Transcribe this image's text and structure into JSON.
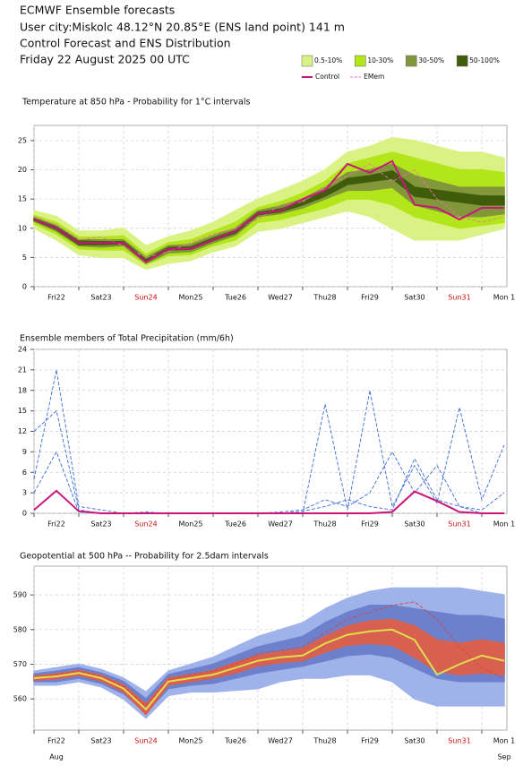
{
  "header": {
    "lines": [
      "ECMWF Ensemble forecasts",
      "User city:Miskolc 48.12°N 20.85°E (ENS land point) 141 m",
      "Control Forecast and ENS Distribution",
      "Friday 22 August 2025 00 UTC"
    ]
  },
  "chart_data": [
    {
      "type": "line",
      "title": "Temperature at 850 hPa - Probability for 1°C intervals",
      "x": [
        0,
        0.5,
        1,
        1.5,
        2,
        2.5,
        3,
        3.5,
        4,
        4.5,
        5,
        5.5,
        6,
        6.5,
        7,
        7.5,
        8,
        8.5,
        9,
        9.5,
        10,
        10.5
      ],
      "xlim": [
        0,
        10.56
      ],
      "ylim": [
        0,
        27.6
      ],
      "yticks": [
        0,
        5,
        10,
        15,
        20,
        25
      ],
      "grid": true,
      "xgrid": [
        0,
        1,
        2,
        3,
        4,
        5,
        6,
        7,
        8,
        9,
        10
      ],
      "xticks": [
        {
          "value": 0.5,
          "label": "Fri22"
        },
        {
          "value": 1.5,
          "label": "Sat23"
        },
        {
          "value": 2.5,
          "label": "Sun24",
          "color": "#d01010"
        },
        {
          "value": 3.5,
          "label": "Mon25"
        },
        {
          "value": 4.5,
          "label": "Tue26"
        },
        {
          "value": 5.5,
          "label": "Wed27"
        },
        {
          "value": 6.5,
          "label": "Thu28"
        },
        {
          "value": 7.5,
          "label": "Fri29"
        },
        {
          "value": 8.5,
          "label": "Sat30"
        },
        {
          "value": 9.5,
          "label": "Sun31",
          "color": "#d01010"
        },
        {
          "value": 10.5,
          "label": "Mon 1"
        }
      ],
      "series": [
        {
          "name": "0.5-10%",
          "color": "#d9f283",
          "high": [
            13,
            12,
            9.5,
            9.5,
            10,
            7,
            8.5,
            9.5,
            11,
            13,
            15,
            16.5,
            18,
            20,
            23,
            24,
            25.5,
            25,
            24,
            23,
            23,
            22
          ],
          "low": [
            10,
            8,
            5.5,
            5,
            5,
            3,
            4,
            4.5,
            6,
            7,
            9.5,
            10,
            11,
            12,
            13,
            12,
            10,
            8,
            8,
            8,
            9,
            10
          ]
        },
        {
          "name": "10-30%",
          "color": "#b2e61a",
          "high": [
            12.2,
            11,
            8.5,
            8.5,
            8.7,
            5.5,
            7.5,
            8,
            9.5,
            11,
            13.5,
            14.5,
            16,
            18,
            21,
            22,
            23,
            22,
            21,
            20,
            20,
            19.5
          ],
          "low": [
            10.8,
            9,
            6.5,
            6.3,
            6.3,
            3.8,
            5.3,
            5.5,
            7,
            8,
            11,
            11.5,
            12.5,
            13.5,
            15,
            15,
            14,
            12,
            11,
            10,
            10.5,
            11
          ]
        },
        {
          "name": "30-50%",
          "color": "#82963a",
          "high": [
            11.8,
            10.5,
            8,
            8,
            8,
            5,
            7,
            7.2,
            8.7,
            10,
            13,
            13.8,
            15,
            17,
            19.5,
            20,
            21,
            19,
            18,
            17,
            17,
            17
          ],
          "low": [
            11.2,
            9.5,
            7,
            6.8,
            7,
            4,
            5.8,
            6,
            7.5,
            8.8,
            12,
            12.5,
            13.5,
            15,
            16.5,
            16.5,
            17,
            14,
            13,
            12,
            12,
            12.5
          ]
        },
        {
          "name": "50-100%",
          "color": "#3e5c0a",
          "high": [
            11.6,
            10.2,
            7.8,
            7.7,
            7.7,
            4.6,
            6.7,
            6.8,
            8.3,
            9.6,
            12.7,
            13.3,
            14.5,
            16.3,
            18.5,
            19,
            19.8,
            17,
            16.5,
            16,
            15.5,
            15.5
          ],
          "low": [
            11.4,
            9.8,
            7.2,
            7.2,
            7.3,
            4.2,
            6.3,
            6.4,
            7.9,
            9.2,
            12.3,
            12.8,
            14,
            15.5,
            17.5,
            18,
            18.5,
            15.5,
            15,
            14.5,
            14,
            14
          ]
        },
        {
          "name": "EMem",
          "color": "#f070b0",
          "dashed": true,
          "values": [
            12,
            10.5,
            8,
            8.5,
            7,
            5,
            6,
            7.5,
            9,
            10,
            11.5,
            14,
            14.5,
            17,
            19,
            21,
            18,
            20,
            15,
            12,
            11,
            12
          ]
        },
        {
          "name": "Control",
          "color": "#c8167a",
          "values": [
            11.5,
            10,
            7.5,
            7.5,
            7.5,
            4.2,
            6.5,
            6.5,
            8,
            9.5,
            12.5,
            13,
            15,
            16.5,
            21,
            19.5,
            21.5,
            14,
            13.5,
            11.5,
            13.5,
            13.5
          ]
        }
      ]
    },
    {
      "type": "line",
      "title": "Ensemble members of Total Precipitation (mm/6h)",
      "x": [
        0,
        0.5,
        1,
        1.5,
        2,
        2.5,
        3,
        3.5,
        4,
        4.5,
        5,
        5.5,
        6,
        6.5,
        7,
        7.5,
        8,
        8.5,
        9,
        9.5,
        10,
        10.5
      ],
      "xlim": [
        0,
        10.56
      ],
      "ylim": [
        0,
        24
      ],
      "yticks": [
        0,
        3,
        6,
        9,
        12,
        15,
        18,
        21,
        24
      ],
      "grid": true,
      "xgrid": [
        0,
        1,
        2,
        3,
        4,
        5,
        6,
        7,
        8,
        9,
        10
      ],
      "xticks": [
        {
          "value": 0.5,
          "label": "Fri22"
        },
        {
          "value": 1.5,
          "label": "Sat23"
        },
        {
          "value": 2.5,
          "label": "Sun24",
          "color": "#d01010"
        },
        {
          "value": 3.5,
          "label": "Mon25"
        },
        {
          "value": 4.5,
          "label": "Tue26"
        },
        {
          "value": 5.5,
          "label": "Wed27"
        },
        {
          "value": 6.5,
          "label": "Thu28"
        },
        {
          "value": 7.5,
          "label": "Fri29"
        },
        {
          "value": 8.5,
          "label": "Sat30"
        },
        {
          "value": 9.5,
          "label": "Sun31",
          "color": "#d01010"
        },
        {
          "value": 10.5,
          "label": "Mon 1"
        }
      ],
      "series": [
        {
          "color": "#3a6ad8",
          "dashed": true,
          "values": [
            5,
            21,
            1,
            0.5,
            0,
            0.2,
            0,
            0,
            0,
            0,
            0,
            0,
            0.3,
            1,
            2,
            1,
            0.5,
            8,
            2,
            1,
            0,
            0
          ]
        },
        {
          "color": "#3a6ad8",
          "dashed": true,
          "values": [
            12,
            15,
            0.5,
            0,
            0,
            0,
            0,
            0,
            0,
            0,
            0,
            0,
            0,
            16,
            0.5,
            18,
            1,
            7,
            1.5,
            15.5,
            2,
            10
          ]
        },
        {
          "color": "#3a6ad8",
          "dashed": true,
          "values": [
            3,
            9,
            0.2,
            0,
            0,
            0,
            0,
            0,
            0,
            0,
            0,
            0.2,
            0.5,
            2,
            1,
            3,
            9,
            3,
            7,
            1,
            0.5,
            3
          ]
        },
        {
          "color": "#c8167a",
          "values": [
            0.5,
            3.3,
            0.3,
            0,
            0,
            0,
            0,
            0,
            0,
            0,
            0,
            0,
            0,
            0,
            0,
            0,
            0.2,
            3.2,
            1.8,
            0.2,
            0,
            0
          ]
        }
      ]
    },
    {
      "type": "line",
      "title": "Geopotential at 500 hPa -- Probability for 2.5dam intervals",
      "x": [
        0,
        0.5,
        1,
        1.5,
        2,
        2.5,
        3,
        3.5,
        4,
        4.5,
        5,
        5.5,
        6,
        6.5,
        7,
        7.5,
        8,
        8.5,
        9,
        9.5,
        10,
        10.5
      ],
      "xlim": [
        0,
        10.56
      ],
      "ylim": [
        551,
        598.3
      ],
      "yticks": [
        560,
        570,
        580,
        590
      ],
      "grid": true,
      "xgrid": [
        0,
        1,
        2,
        3,
        4,
        5,
        6,
        7,
        8,
        9,
        10
      ],
      "xticks": [
        {
          "value": 0.5,
          "label": "Fri22"
        },
        {
          "value": 1.5,
          "label": "Sat23"
        },
        {
          "value": 2.5,
          "label": "Sun24",
          "color": "#d01010"
        },
        {
          "value": 3.5,
          "label": "Mon25"
        },
        {
          "value": 4.5,
          "label": "Tue26"
        },
        {
          "value": 5.5,
          "label": "Wed27"
        },
        {
          "value": 6.5,
          "label": "Thu28"
        },
        {
          "value": 7.5,
          "label": "Fri29"
        },
        {
          "value": 8.5,
          "label": "Sat30"
        },
        {
          "value": 9.5,
          "label": "Sun31",
          "color": "#d01010"
        },
        {
          "value": 10.5,
          "label": "Mon 1"
        }
      ],
      "xsublabels": [
        {
          "value": 0.5,
          "label": "Aug"
        },
        {
          "value": 10.5,
          "label": "Sep"
        }
      ],
      "series": [
        {
          "color": "#9fb3ea",
          "high": [
            568,
            569,
            570,
            568.5,
            566,
            562,
            568,
            570,
            572,
            575,
            578,
            580,
            582,
            586,
            589,
            591,
            592,
            592,
            592,
            592,
            591,
            590
          ],
          "low": [
            564,
            564,
            565,
            563.5,
            560,
            554.5,
            561,
            562,
            562,
            562.5,
            563,
            565,
            566,
            566,
            567,
            567,
            565,
            560,
            558,
            558,
            558,
            558
          ]
        },
        {
          "color": "#6c80cc",
          "high": [
            567.2,
            568,
            569,
            567.5,
            565,
            560,
            567,
            568.5,
            570,
            572.5,
            575,
            576.5,
            578,
            582,
            585,
            587,
            587,
            586,
            585,
            584,
            584,
            583
          ],
          "low": [
            565,
            565,
            566,
            564.5,
            561.5,
            556,
            563,
            564,
            564.5,
            566,
            567.5,
            568.5,
            569.5,
            571,
            572.5,
            573,
            572,
            569,
            566,
            565,
            565,
            565
          ]
        },
        {
          "color": "#d8604e",
          "high": [
            566.6,
            567.2,
            568.2,
            566.8,
            564,
            558.5,
            566,
            567,
            568.2,
            570.5,
            572.5,
            573.5,
            574.5,
            578,
            581,
            582.5,
            583,
            581,
            577,
            576,
            577,
            576
          ],
          "low": [
            565.4,
            565.8,
            566.8,
            565.2,
            562,
            555.5,
            564,
            565,
            566,
            567.5,
            569.5,
            570.5,
            571,
            573.5,
            575.5,
            576,
            575.5,
            572,
            568,
            567,
            567.5,
            567
          ]
        },
        {
          "color": "#e04040",
          "dashed": true,
          "values": [
            566,
            567,
            568,
            566.5,
            563.5,
            558,
            565.5,
            567,
            568,
            570,
            573,
            574,
            575,
            579,
            583,
            585,
            587,
            588,
            583,
            575,
            569,
            566
          ]
        },
        {
          "color": "#dede50",
          "values": [
            566,
            566.5,
            567.5,
            566,
            563,
            557,
            565,
            566,
            567,
            569,
            571,
            572,
            572.5,
            576,
            578.5,
            579.5,
            580,
            577,
            567,
            570,
            572.5,
            571
          ]
        }
      ]
    }
  ]
}
